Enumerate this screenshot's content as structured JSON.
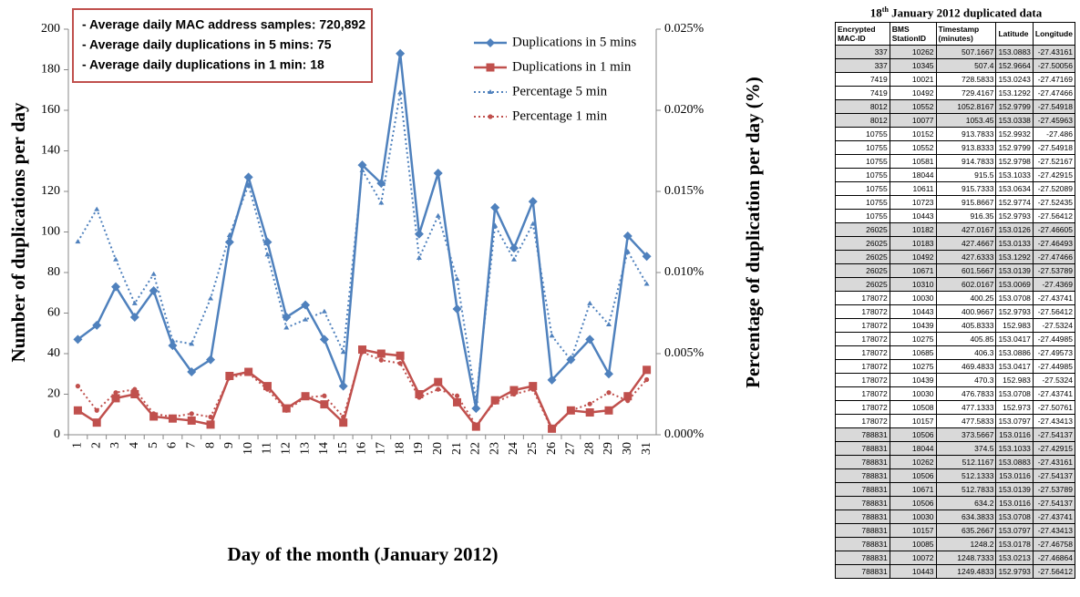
{
  "chart_data": {
    "type": "line",
    "annotations": [
      "- Average daily MAC address samples: 720,892",
      "- Average  daily duplications in 5 mins: 75",
      "- Average daily  duplications in 1 min: 18"
    ],
    "ylabel": "Number of  duplications per day",
    "y2label": "Percentage of duplication per day (%)",
    "xlabel": "Day of  the month (January 2012)",
    "categories": [
      "1",
      "2",
      "3",
      "4",
      "5",
      "6",
      "7",
      "8",
      "9",
      "10",
      "11",
      "12",
      "13",
      "14",
      "15",
      "16",
      "17",
      "18",
      "19",
      "20",
      "21",
      "22",
      "23",
      "24",
      "25",
      "26",
      "27",
      "28",
      "29",
      "30",
      "31"
    ],
    "ylim": [
      0,
      200
    ],
    "yticks": [
      0,
      20,
      40,
      60,
      80,
      100,
      120,
      140,
      160,
      180,
      200
    ],
    "y2lim": [
      0,
      0.025
    ],
    "y2ticks": [
      {
        "value": 0,
        "label": "0.000%"
      },
      {
        "value": 0.005,
        "label": "0.005%"
      },
      {
        "value": 0.01,
        "label": "0.010%"
      },
      {
        "value": 0.015,
        "label": "0.015%"
      },
      {
        "value": 0.02,
        "label": "0.020%"
      },
      {
        "value": 0.025,
        "label": "0.025%"
      }
    ],
    "legend": "upper right",
    "series": [
      {
        "name": "Duplications in 5 mins",
        "color": "#4f81bd",
        "marker": "diamond",
        "dashed": false,
        "values": [
          47,
          54,
          73,
          58,
          71,
          44,
          31,
          37,
          95,
          127,
          95,
          58,
          64,
          47,
          24,
          133,
          124,
          188,
          99,
          129,
          62,
          13,
          112,
          92,
          115,
          27,
          37,
          47,
          30,
          98,
          88
        ]
      },
      {
        "name": "Duplications in 1 min",
        "color": "#c0504d",
        "marker": "square",
        "dashed": false,
        "values": [
          12,
          6,
          18,
          20,
          9,
          8,
          7,
          5,
          29,
          31,
          24,
          13,
          19,
          15,
          6,
          42,
          40,
          39,
          20,
          26,
          16,
          4,
          17,
          22,
          24,
          3,
          12,
          11,
          12,
          19,
          32
        ]
      },
      {
        "name": "Percentage 5 min",
        "color": "#4f81bd",
        "marker": "triangle",
        "dashed": true,
        "axis": "y2",
        "values": [
          0.0119,
          0.0139,
          0.0108,
          0.0081,
          0.0099,
          0.0058,
          0.0056,
          0.0084,
          0.0123,
          0.0154,
          0.0111,
          0.0066,
          0.0071,
          0.0076,
          0.0051,
          0.0163,
          0.0143,
          0.0211,
          0.0109,
          0.0135,
          0.0096,
          0.0021,
          0.0129,
          0.0108,
          0.013,
          0.0061,
          0.0046,
          0.0081,
          0.0068,
          0.0113,
          0.0093
        ]
      },
      {
        "name": "Percentage 1 min",
        "color": "#c0504d",
        "marker": "circle",
        "dashed": true,
        "axis": "y2",
        "values": [
          0.003,
          0.0015,
          0.0026,
          0.0028,
          0.0013,
          0.0011,
          0.0013,
          0.0011,
          0.0035,
          0.0038,
          0.0028,
          0.0015,
          0.0023,
          0.0024,
          0.0011,
          0.0051,
          0.0046,
          0.0044,
          0.0023,
          0.0028,
          0.0024,
          0.0006,
          0.002,
          0.0025,
          0.0028,
          0.0003,
          0.0015,
          0.0019,
          0.0026,
          0.0021,
          0.0034
        ]
      }
    ]
  },
  "table": {
    "title_number": "18",
    "title_suffix": "th",
    "title_rest": " January 2012 duplicated data",
    "headers": [
      "Encrypted MAC-ID",
      "BMS StationID",
      "Timestamp (minutes)",
      "Latitude",
      "Longitude"
    ],
    "rows": [
      [
        337,
        10262,
        507.1667,
        153.0883,
        -27.43161
      ],
      [
        337,
        10345,
        507.4,
        152.9664,
        -27.50056
      ],
      [
        7419,
        10021,
        728.5833,
        153.0243,
        -27.47169
      ],
      [
        7419,
        10492,
        729.4167,
        153.1292,
        -27.47466
      ],
      [
        8012,
        10552,
        1052.8167,
        152.9799,
        -27.54918
      ],
      [
        8012,
        10077,
        1053.45,
        153.0338,
        -27.45963
      ],
      [
        10755,
        10152,
        913.7833,
        152.9932,
        -27.486
      ],
      [
        10755,
        10552,
        913.8333,
        152.9799,
        -27.54918
      ],
      [
        10755,
        10581,
        914.7833,
        152.9798,
        -27.52167
      ],
      [
        10755,
        18044,
        915.5,
        153.1033,
        -27.42915
      ],
      [
        10755,
        10611,
        915.7333,
        153.0634,
        -27.52089
      ],
      [
        10755,
        10723,
        915.8667,
        152.9774,
        -27.52435
      ],
      [
        10755,
        10443,
        916.35,
        152.9793,
        -27.56412
      ],
      [
        26025,
        10182,
        427.0167,
        153.0126,
        -27.46605
      ],
      [
        26025,
        10183,
        427.4667,
        153.0133,
        -27.46493
      ],
      [
        26025,
        10492,
        427.6333,
        153.1292,
        -27.47466
      ],
      [
        26025,
        10671,
        601.5667,
        153.0139,
        -27.53789
      ],
      [
        26025,
        10310,
        602.0167,
        153.0069,
        -27.4369
      ],
      [
        178072,
        10030,
        400.25,
        153.0708,
        -27.43741
      ],
      [
        178072,
        10443,
        400.9667,
        152.9793,
        -27.56412
      ],
      [
        178072,
        10439,
        405.8333,
        152.983,
        -27.5324
      ],
      [
        178072,
        10275,
        405.85,
        153.0417,
        -27.44985
      ],
      [
        178072,
        10685,
        406.3,
        153.0886,
        -27.49573
      ],
      [
        178072,
        10275,
        469.4833,
        153.0417,
        -27.44985
      ],
      [
        178072,
        10439,
        470.3,
        152.983,
        -27.5324
      ],
      [
        178072,
        10030,
        476.7833,
        153.0708,
        -27.43741
      ],
      [
        178072,
        10508,
        477.1333,
        152.973,
        -27.50761
      ],
      [
        178072,
        10157,
        477.5833,
        153.0797,
        -27.43413
      ],
      [
        788831,
        10506,
        373.5667,
        153.0116,
        -27.54137
      ],
      [
        788831,
        18044,
        374.5,
        153.1033,
        -27.42915
      ],
      [
        788831,
        10262,
        512.1167,
        153.0883,
        -27.43161
      ],
      [
        788831,
        10506,
        512.1333,
        153.0116,
        -27.54137
      ],
      [
        788831,
        10671,
        512.7833,
        153.0139,
        -27.53789
      ],
      [
        788831,
        10506,
        634.2,
        153.0116,
        -27.54137
      ],
      [
        788831,
        10030,
        634.3833,
        153.0708,
        -27.43741
      ],
      [
        788831,
        10157,
        635.2667,
        153.0797,
        -27.43413
      ],
      [
        788831,
        10085,
        1248.2,
        153.0178,
        -27.46758
      ],
      [
        788831,
        10072,
        1248.7333,
        153.0213,
        -27.46864
      ],
      [
        788831,
        10443,
        1249.4833,
        152.9793,
        -27.56412
      ]
    ]
  }
}
